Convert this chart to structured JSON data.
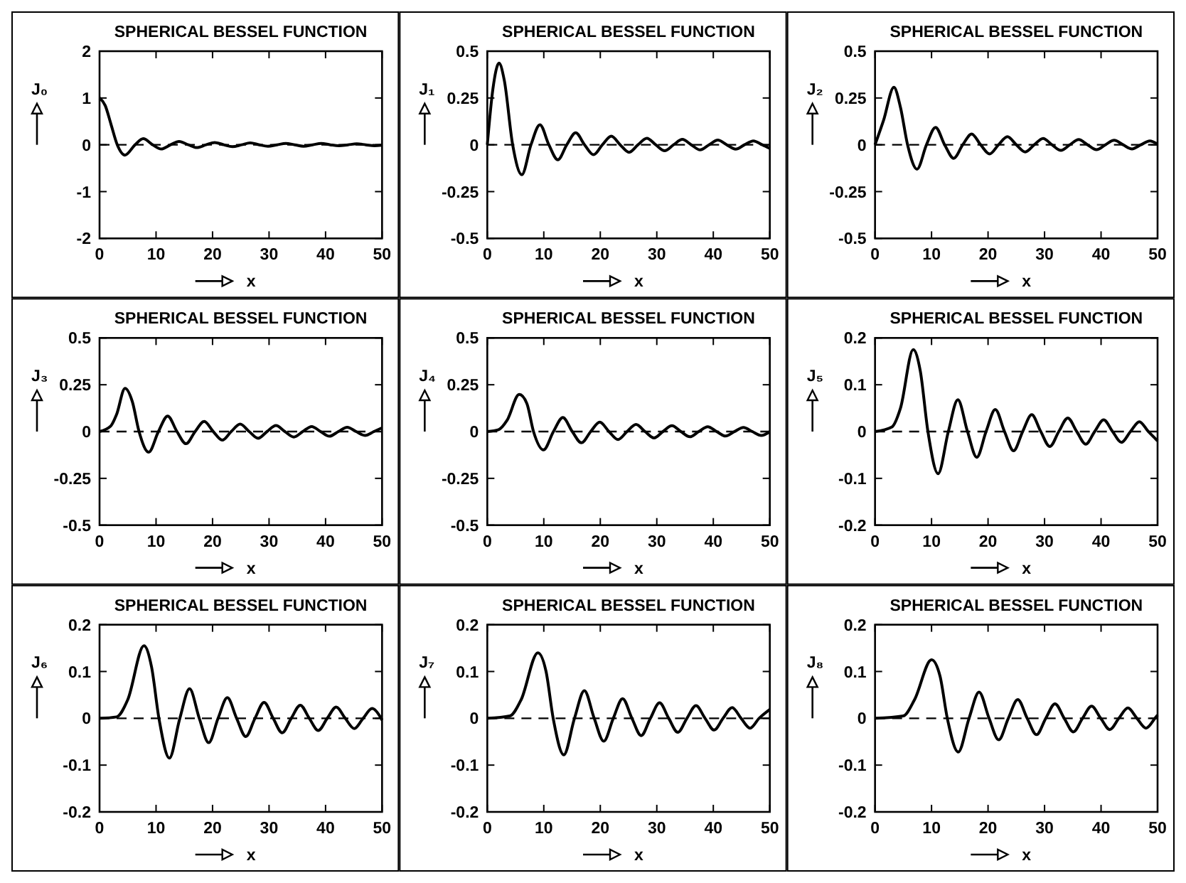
{
  "chart_data": [
    {
      "type": "line",
      "title": "SPHERICAL BESSEL FUNCTION",
      "xlabel": "x",
      "ylabel": "J₀",
      "color": "#000000",
      "xlim": [
        0,
        50
      ],
      "xticks": [
        0,
        10,
        20,
        30,
        40,
        50
      ],
      "ylim": [
        -2,
        2
      ],
      "yticks": [
        -2,
        -1,
        0,
        1,
        2
      ],
      "ref_lines": [
        {
          "axis": "y",
          "value": 0,
          "line_style": "dashed"
        }
      ],
      "x": [
        0,
        1,
        2,
        3.14,
        4.49,
        6.28,
        7.73,
        9.42,
        10.9,
        12.57,
        14.07,
        15.71,
        17.22,
        18.85,
        20.37,
        21.99,
        23.52,
        25.13,
        26.67,
        28.27,
        29.81,
        31.42,
        32.96,
        34.56,
        36.1,
        37.7,
        39.24,
        40.84,
        42.38,
        43.98,
        45.52,
        47.12,
        48.66,
        50
      ],
      "values": [
        1,
        0.84,
        0.45,
        0,
        -0.22,
        0,
        0.13,
        0,
        -0.09,
        0,
        0.07,
        0,
        -0.06,
        0,
        0.05,
        0,
        -0.04,
        0,
        0.04,
        0,
        -0.03,
        0,
        0.03,
        0,
        -0.03,
        0,
        0.03,
        0,
        -0.02,
        0,
        0.02,
        0,
        -0.02,
        -0.01
      ]
    },
    {
      "type": "line",
      "title": "SPHERICAL BESSEL FUNCTION",
      "xlabel": "x",
      "ylabel": "J₁",
      "color": "#000000",
      "xlim": [
        0,
        50
      ],
      "xticks": [
        0,
        10,
        20,
        30,
        40,
        50
      ],
      "ylim": [
        -0.5,
        0.5
      ],
      "yticks": [
        -0.5,
        -0.25,
        0,
        0.25,
        0.5
      ],
      "ref_lines": [
        {
          "axis": "y",
          "value": 0,
          "line_style": "dashed"
        }
      ],
      "x": [
        0,
        1,
        2.08,
        3,
        4.49,
        6.11,
        7.73,
        9.32,
        10.9,
        12.49,
        14.07,
        15.65,
        17.22,
        18.8,
        20.37,
        21.95,
        23.52,
        25.1,
        26.67,
        28.24,
        29.81,
        31.39,
        32.96,
        34.53,
        36.1,
        37.67,
        39.24,
        40.81,
        42.38,
        43.95,
        45.52,
        47.09,
        48.66,
        50
      ],
      "values": [
        0,
        0.3,
        0.436,
        0.346,
        0,
        -0.16,
        0,
        0.107,
        0,
        -0.08,
        0,
        0.064,
        0,
        -0.053,
        0,
        0.046,
        0,
        -0.04,
        0,
        0.035,
        0,
        -0.032,
        0,
        0.029,
        0,
        -0.027,
        0,
        0.025,
        0,
        -0.023,
        0,
        0.021,
        0,
        -0.019
      ]
    },
    {
      "type": "line",
      "title": "SPHERICAL BESSEL FUNCTION",
      "xlabel": "x",
      "ylabel": "J₂",
      "color": "#000000",
      "xlim": [
        0,
        50
      ],
      "xticks": [
        0,
        10,
        20,
        30,
        40,
        50
      ],
      "ylim": [
        -0.5,
        0.5
      ],
      "yticks": [
        -0.5,
        -0.25,
        0,
        0.25,
        0.5
      ],
      "ref_lines": [
        {
          "axis": "y",
          "value": 0,
          "line_style": "dashed"
        }
      ],
      "x": [
        0,
        1.5,
        3.34,
        4.5,
        5.76,
        7.43,
        9.1,
        10.71,
        12.32,
        13.92,
        15.52,
        17.1,
        18.69,
        20.27,
        21.85,
        23.43,
        25.01,
        26.59,
        28.17,
        29.74,
        31.32,
        32.9,
        34.47,
        36.05,
        37.62,
        39.19,
        40.76,
        42.33,
        43.9,
        45.48,
        47.05,
        48.62,
        50
      ],
      "values": [
        0,
        0.13,
        0.307,
        0.2,
        0,
        -0.13,
        0,
        0.093,
        0,
        -0.072,
        0,
        0.058,
        0,
        -0.049,
        0,
        0.043,
        0,
        -0.038,
        0,
        0.034,
        0,
        -0.03,
        0,
        0.028,
        0,
        -0.026,
        0,
        0.024,
        0,
        -0.022,
        0,
        0.021,
        0.004
      ]
    },
    {
      "type": "line",
      "title": "SPHERICAL BESSEL FUNCTION",
      "xlabel": "x",
      "ylabel": "J₃",
      "color": "#000000",
      "xlim": [
        0,
        50
      ],
      "xticks": [
        0,
        10,
        20,
        30,
        40,
        50
      ],
      "ylim": [
        -0.5,
        0.5
      ],
      "yticks": [
        -0.5,
        -0.25,
        0,
        0.25,
        0.5
      ],
      "ref_lines": [
        {
          "axis": "y",
          "value": 0,
          "line_style": "dashed"
        }
      ],
      "x": [
        0,
        2,
        3,
        4.51,
        5.8,
        6.99,
        8.7,
        10.42,
        12.06,
        13.7,
        15.31,
        16.92,
        18.52,
        20.12,
        21.71,
        23.3,
        24.89,
        26.48,
        28.06,
        29.64,
        31.22,
        32.8,
        34.38,
        35.96,
        37.54,
        39.11,
        40.69,
        42.26,
        43.84,
        45.41,
        46.99,
        48.56,
        50
      ],
      "values": [
        0,
        0.03,
        0.09,
        0.231,
        0.16,
        0,
        -0.11,
        0,
        0.083,
        0,
        -0.065,
        0,
        0.054,
        0,
        -0.046,
        0,
        0.04,
        0,
        -0.036,
        0,
        0.032,
        0,
        -0.029,
        0,
        0.027,
        0,
        -0.025,
        0,
        0.023,
        0,
        -0.021,
        0,
        0.02
      ]
    },
    {
      "type": "line",
      "title": "SPHERICAL BESSEL FUNCTION",
      "xlabel": "x",
      "ylabel": "J₄",
      "color": "#000000",
      "xlim": [
        0,
        50
      ],
      "xticks": [
        0,
        10,
        20,
        30,
        40,
        50
      ],
      "ylim": [
        -0.5,
        0.5
      ],
      "yticks": [
        -0.5,
        -0.25,
        0,
        0.25,
        0.5
      ],
      "ref_lines": [
        {
          "axis": "y",
          "value": 0,
          "line_style": "dashed"
        }
      ],
      "x": [
        0,
        2,
        3.5,
        5.65,
        7,
        8.18,
        9.94,
        11.71,
        13.37,
        15.04,
        16.67,
        18.3,
        19.91,
        21.53,
        23.13,
        24.73,
        26.32,
        27.92,
        29.51,
        31.09,
        32.68,
        34.26,
        35.85,
        37.43,
        39.01,
        40.59,
        42.17,
        43.75,
        45.33,
        46.9,
        48.48,
        50
      ],
      "values": [
        0,
        0.01,
        0.06,
        0.198,
        0.15,
        0,
        -0.098,
        0,
        0.075,
        0,
        -0.06,
        0,
        0.05,
        0,
        -0.043,
        0,
        0.038,
        0,
        -0.034,
        0,
        0.031,
        0,
        -0.028,
        0,
        0.026,
        0,
        -0.024,
        0,
        0.022,
        0,
        -0.021,
        -0.001
      ]
    },
    {
      "type": "line",
      "title": "SPHERICAL BESSEL FUNCTION",
      "xlabel": "x",
      "ylabel": "J₅",
      "color": "#000000",
      "xlim": [
        0,
        50
      ],
      "xticks": [
        0,
        10,
        20,
        30,
        40,
        50
      ],
      "ylim": [
        -0.2,
        0.2
      ],
      "yticks": [
        -0.2,
        -0.1,
        0,
        0.1,
        0.2
      ],
      "ref_lines": [
        {
          "axis": "y",
          "value": 0,
          "line_style": "dashed"
        }
      ],
      "x": [
        0,
        3,
        4.5,
        6.76,
        8,
        9.36,
        11.16,
        12.97,
        14.66,
        16.36,
        18,
        19.65,
        21.28,
        22.91,
        24.52,
        26.13,
        27.73,
        29.33,
        30.93,
        32.52,
        34.11,
        35.7,
        37.29,
        38.87,
        40.46,
        42.04,
        43.62,
        45.2,
        46.78,
        48.36,
        50
      ],
      "values": [
        0,
        0.01,
        0.05,
        0.175,
        0.13,
        0,
        -0.09,
        0,
        0.068,
        0,
        -0.055,
        0,
        0.047,
        0,
        -0.041,
        0,
        0.036,
        0,
        -0.032,
        0,
        0.029,
        0,
        -0.027,
        0,
        0.025,
        0,
        -0.023,
        0,
        0.021,
        0,
        -0.02
      ]
    },
    {
      "type": "line",
      "title": "SPHERICAL BESSEL FUNCTION",
      "xlabel": "x",
      "ylabel": "J₆",
      "color": "#000000",
      "xlim": [
        0,
        50
      ],
      "xticks": [
        0,
        10,
        20,
        30,
        40,
        50
      ],
      "ylim": [
        -0.2,
        0.2
      ],
      "yticks": [
        -0.2,
        -0.1,
        0,
        0.1,
        0.2
      ],
      "ref_lines": [
        {
          "axis": "y",
          "value": 0,
          "line_style": "dashed"
        }
      ],
      "x": [
        0,
        3,
        5,
        7.86,
        9.2,
        10.51,
        12.36,
        14.21,
        15.93,
        17.65,
        19.32,
        20.98,
        22.62,
        24.26,
        25.88,
        27.51,
        29.12,
        30.73,
        32.33,
        33.93,
        35.53,
        37.12,
        38.71,
        40.3,
        41.89,
        43.48,
        45.07,
        46.65,
        48.24,
        49.82,
        50
      ],
      "values": [
        0,
        0.003,
        0.04,
        0.155,
        0.11,
        0,
        -0.085,
        0,
        0.063,
        0,
        -0.052,
        0,
        0.044,
        0,
        -0.039,
        0,
        0.034,
        0,
        -0.031,
        0,
        0.028,
        0,
        -0.026,
        0,
        0.024,
        0,
        -0.022,
        0,
        0.021,
        0,
        -0.004
      ]
    },
    {
      "type": "line",
      "title": "SPHERICAL BESSEL FUNCTION",
      "xlabel": "x",
      "ylabel": "J₇",
      "color": "#000000",
      "xlim": [
        0,
        50
      ],
      "xticks": [
        0,
        10,
        20,
        30,
        40,
        50
      ],
      "ylim": [
        -0.2,
        0.2
      ],
      "yticks": [
        -0.2,
        -0.1,
        0,
        0.1,
        0.2
      ],
      "ref_lines": [
        {
          "axis": "y",
          "value": 0,
          "line_style": "dashed"
        }
      ],
      "x": [
        0,
        4,
        6,
        8.95,
        10.4,
        11.66,
        13.54,
        15.43,
        17.18,
        18.92,
        20.61,
        22.3,
        23.95,
        25.6,
        27.24,
        28.87,
        30.49,
        32.11,
        33.72,
        35.33,
        36.94,
        38.54,
        40.14,
        41.73,
        43.33,
        44.92,
        46.51,
        48.1,
        50
      ],
      "values": [
        0,
        0.005,
        0.04,
        0.14,
        0.1,
        0,
        -0.078,
        0,
        0.059,
        0,
        -0.049,
        0,
        0.042,
        0,
        -0.037,
        0,
        0.033,
        0,
        -0.03,
        0,
        0.027,
        0,
        -0.025,
        0,
        0.023,
        0,
        -0.021,
        0,
        0.019
      ]
    },
    {
      "type": "line",
      "title": "SPHERICAL BESSEL FUNCTION",
      "xlabel": "x",
      "ylabel": "J₈",
      "color": "#000000",
      "xlim": [
        0,
        50
      ],
      "xticks": [
        0,
        10,
        20,
        30,
        40,
        50
      ],
      "ylim": [
        -0.2,
        0.2
      ],
      "yticks": [
        -0.2,
        -0.1,
        0,
        0.1,
        0.2
      ],
      "ref_lines": [
        {
          "axis": "y",
          "value": 0,
          "line_style": "dashed"
        }
      ],
      "x": [
        0,
        5,
        7,
        10,
        11.5,
        12.79,
        14.72,
        16.64,
        18.41,
        20.18,
        21.89,
        23.59,
        25.26,
        26.93,
        28.58,
        30.22,
        31.85,
        33.48,
        35.1,
        36.72,
        38.33,
        39.94,
        41.55,
        43.15,
        44.75,
        46.35,
        47.95,
        49.54,
        50
      ],
      "values": [
        0,
        0.005,
        0.04,
        0.125,
        0.09,
        0,
        -0.072,
        0,
        0.056,
        0,
        -0.046,
        0,
        0.04,
        0,
        -0.035,
        0,
        0.031,
        0,
        -0.029,
        0,
        0.026,
        0,
        -0.024,
        0,
        0.022,
        0,
        -0.021,
        0,
        0.007
      ]
    }
  ]
}
